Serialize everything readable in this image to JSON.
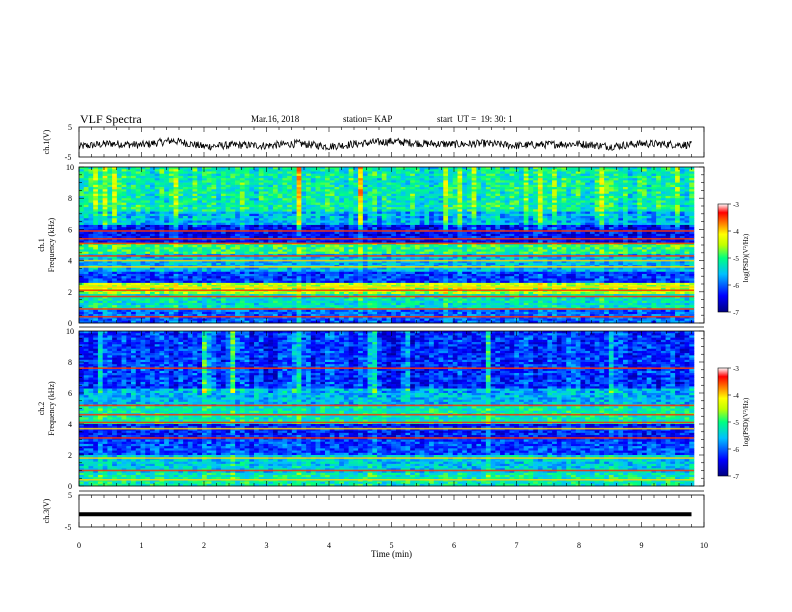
{
  "header": {
    "title": "VLF Spectra",
    "date": "Mar.16, 2018",
    "station": "station= KAP",
    "start": "start  UT =  19: 30: 1"
  },
  "chart_data": [
    {
      "type": "line",
      "panel": "ch1-waveform",
      "ylabel": "ch.1(V)",
      "ylim": [
        -5,
        5
      ],
      "yticks": [
        5,
        -5
      ],
      "xlim": [
        0,
        10
      ],
      "note": "noisy waveform around -1 V spanning 0-9.8 min",
      "x": [
        0,
        0.5,
        1,
        1.5,
        2,
        2.5,
        3,
        3.5,
        4,
        4.5,
        5,
        5.5,
        6,
        6.5,
        7,
        7.5,
        8,
        8.5,
        9,
        9.5,
        9.8
      ],
      "y": [
        -1.5,
        -0.5,
        -1,
        0.5,
        -1.5,
        -1,
        -1.2,
        -0.5,
        -1.5,
        -0.5,
        0.2,
        -0.5,
        -0.8,
        -0.5,
        -1.2,
        -0.8,
        -0.6,
        -1.5,
        -0.5,
        -0.8,
        -1
      ]
    },
    {
      "type": "heatmap",
      "panel": "ch1-spectrogram",
      "ylabel": "ch.1",
      "ylabel2": "Frequency (kHz)",
      "ylim": [
        0,
        10
      ],
      "yticks": [
        0,
        2,
        4,
        6,
        8,
        10
      ],
      "xlim": [
        0,
        10
      ],
      "colorbar": {
        "label": "log(PSD)(V²/Hz)",
        "range": [
          -7,
          -3
        ],
        "ticks": [
          -3,
          -4,
          -5,
          -6,
          -7
        ]
      },
      "bands": [
        {
          "from": 0,
          "to": 0.8,
          "level": -6.0
        },
        {
          "from": 0.8,
          "to": 1.8,
          "level": -5.3
        },
        {
          "from": 1.8,
          "to": 2.6,
          "level": -4.5
        },
        {
          "from": 2.6,
          "to": 3.3,
          "level": -6.2
        },
        {
          "from": 3.3,
          "to": 4.4,
          "level": -5.6
        },
        {
          "from": 4.4,
          "to": 5.2,
          "level": -5.0
        },
        {
          "from": 5.2,
          "to": 6.3,
          "level": -6.4
        },
        {
          "from": 6.3,
          "to": 7.2,
          "level": -5.6
        },
        {
          "from": 7.2,
          "to": 10,
          "level": -5.2
        }
      ],
      "lines_khz": [
        0.4,
        0.9,
        1.7,
        2.1,
        2.3,
        3.6,
        4.0,
        4.3,
        5.1,
        5.4,
        5.9
      ]
    },
    {
      "type": "heatmap",
      "panel": "ch2-spectrogram",
      "ylabel": "ch.2",
      "ylabel2": "Frequency (kHz)",
      "ylim": [
        0,
        10
      ],
      "yticks": [
        0,
        2,
        4,
        6,
        8,
        10
      ],
      "xlim": [
        0,
        10
      ],
      "colorbar": {
        "label": "log(PSD)(V²/Hz)",
        "range": [
          -7,
          -3
        ],
        "ticks": [
          -3,
          -4,
          -5,
          -6,
          -7
        ]
      },
      "bands": [
        {
          "from": 0,
          "to": 0.8,
          "level": -5.2
        },
        {
          "from": 0.8,
          "to": 2.0,
          "level": -5.5
        },
        {
          "from": 2.0,
          "to": 3.0,
          "level": -6.1
        },
        {
          "from": 3.0,
          "to": 4.0,
          "level": -6.3
        },
        {
          "from": 4.0,
          "to": 5.2,
          "level": -5.2
        },
        {
          "from": 5.2,
          "to": 6.3,
          "level": -5.6
        },
        {
          "from": 6.3,
          "to": 10,
          "level": -6.2
        }
      ],
      "lines_khz": [
        0.4,
        1.0,
        1.8,
        3.1,
        3.7,
        4.1,
        4.6,
        5.2,
        7.6
      ]
    },
    {
      "type": "line",
      "panel": "ch3-waveform",
      "ylabel": "ch.3(V)",
      "ylim": [
        -5,
        5
      ],
      "yticks": [
        5,
        -5
      ],
      "xlim": [
        0,
        10
      ],
      "xlabel": "Time (min)",
      "xticks": [
        0,
        1,
        2,
        3,
        4,
        5,
        6,
        7,
        8,
        9,
        10
      ],
      "x": [
        0,
        9.8
      ],
      "y": [
        -1,
        -1
      ]
    }
  ],
  "colors": {
    "jet": [
      "#00008f",
      "#0000ff",
      "#00a0ff",
      "#00ffff",
      "#40ff80",
      "#a0ff20",
      "#ffff00",
      "#ff8000",
      "#ff0000",
      "#ffffff"
    ]
  }
}
